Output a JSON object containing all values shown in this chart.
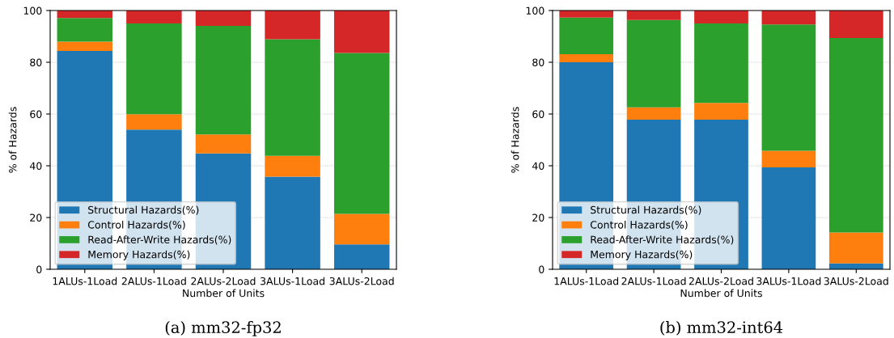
{
  "chart_data": [
    {
      "type": "bar",
      "stacked": true,
      "xlabel": "Number of Units",
      "ylabel": "% of Hazards",
      "categories": [
        "1ALUs-1Load",
        "2ALUs-1Load",
        "2ALUs-2Load",
        "3ALUs-1Load",
        "3ALUs-2Load"
      ],
      "ylim": [
        0,
        100
      ],
      "yticks": [
        0,
        20,
        40,
        60,
        80,
        100
      ],
      "grid": "y",
      "legend": "bottom left",
      "annotations": [
        "(a) mm32-fp32"
      ],
      "series": [
        {
          "name": "Structural Hazards(%)",
          "color": "#1f77b4",
          "values": [
            84.4,
            54.0,
            44.8,
            35.8,
            9.6
          ]
        },
        {
          "name": "Control Hazards(%)",
          "color": "#ff7f0e",
          "values": [
            3.6,
            5.9,
            7.3,
            8.0,
            11.8
          ]
        },
        {
          "name": "Read-After-Write Hazards(%)",
          "color": "#2ca02c",
          "values": [
            9.1,
            35.1,
            42.0,
            45.1,
            62.2
          ]
        },
        {
          "name": "Memory Hazards(%)",
          "color": "#d62728",
          "values": [
            2.9,
            5.0,
            5.9,
            11.1,
            16.4
          ]
        }
      ]
    },
    {
      "type": "bar",
      "stacked": true,
      "xlabel": "Number of Units",
      "ylabel": "% of Hazards",
      "categories": [
        "1ALUs-1Load",
        "2ALUs-1Load",
        "2ALUs-2Load",
        "3ALUs-1Load",
        "3ALUs-2Load"
      ],
      "ylim": [
        0,
        100
      ],
      "yticks": [
        0,
        20,
        40,
        60,
        80,
        100
      ],
      "grid": "y",
      "legend": "bottom left",
      "annotations": [
        "(b) mm32-int64"
      ],
      "series": [
        {
          "name": "Structural Hazards(%)",
          "color": "#1f77b4",
          "values": [
            80.0,
            57.8,
            57.8,
            39.4,
            2.3
          ]
        },
        {
          "name": "Control Hazards(%)",
          "color": "#ff7f0e",
          "values": [
            3.1,
            4.8,
            6.5,
            6.4,
            11.9
          ]
        },
        {
          "name": "Read-After-Write Hazards(%)",
          "color": "#2ca02c",
          "values": [
            14.2,
            33.7,
            30.7,
            48.8,
            75.2
          ]
        },
        {
          "name": "Memory Hazards(%)",
          "color": "#d62728",
          "values": [
            2.7,
            3.7,
            5.0,
            5.4,
            10.6
          ]
        }
      ]
    }
  ]
}
